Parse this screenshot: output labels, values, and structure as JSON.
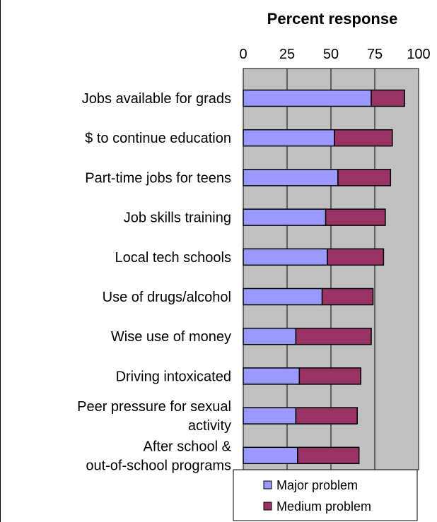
{
  "chart_data": {
    "type": "bar",
    "stacked": true,
    "orientation": "horizontal",
    "title": "Percent response",
    "xlim": [
      0,
      100
    ],
    "xticks": [
      "0",
      "25",
      "50",
      "75",
      "100"
    ],
    "grid": true,
    "plot_background": "#c0c0c0",
    "legend_position": "bottom-right",
    "categories": [
      "Jobs available for grads",
      "$ to continue education",
      "Part-time jobs for teens",
      "Job skills training",
      "Local tech schools",
      "Use of drugs/alcohol",
      "Wise use of money",
      "Driving intoxicated",
      "Peer pressure for sexual activity",
      "After school & out-of-school programs"
    ],
    "series": [
      {
        "name": "Major problem",
        "color": "#9999ff",
        "values": [
          73,
          52,
          54,
          47,
          48,
          45,
          30,
          32,
          30,
          31
        ]
      },
      {
        "name": "Medium problem",
        "color": "#993366",
        "values": [
          19,
          33,
          30,
          34,
          32,
          29,
          43,
          35,
          35,
          35
        ]
      }
    ]
  }
}
